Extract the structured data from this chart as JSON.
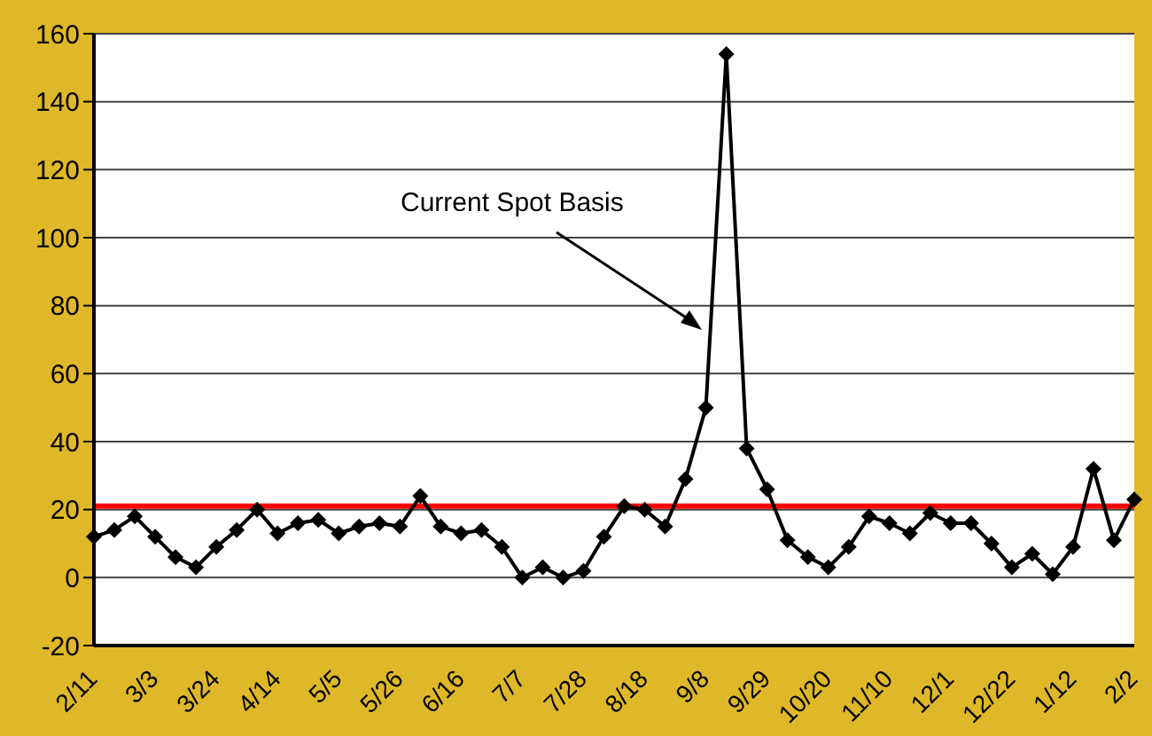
{
  "chart_data": {
    "type": "line",
    "categories": [
      "2/11",
      null,
      null,
      "3/3",
      null,
      null,
      "3/24",
      null,
      null,
      "4/14",
      null,
      null,
      "5/5",
      null,
      null,
      "5/26",
      null,
      null,
      "6/16",
      null,
      null,
      "7/7",
      null,
      null,
      "7/28",
      null,
      null,
      "8/18",
      null,
      null,
      "9/8",
      null,
      null,
      "9/29",
      null,
      null,
      "10/20",
      null,
      null,
      "11/10",
      null,
      null,
      "12/1",
      null,
      null,
      "12/22",
      null,
      null,
      "1/12",
      null,
      null,
      "2/2"
    ],
    "series": [
      {
        "color": "#000000",
        "values": [
          12,
          14,
          18,
          12,
          6,
          3,
          9,
          14,
          20,
          13,
          16,
          17,
          13,
          15,
          16,
          15,
          24,
          15,
          13,
          14,
          9,
          0,
          3,
          0,
          2,
          12,
          21,
          20,
          15,
          29,
          50,
          154,
          38,
          26,
          11,
          6,
          3,
          9,
          18,
          16,
          13,
          19,
          16,
          16,
          10,
          3,
          7,
          1,
          9,
          32,
          11,
          23
        ]
      }
    ],
    "ylim": [
      -20,
      160
    ],
    "yticks": [
      -20,
      0,
      20,
      40,
      60,
      80,
      100,
      120,
      140,
      160
    ],
    "grid": "y",
    "marker": "diamond",
    "line_style": "solid",
    "legend": false,
    "ref_lines": [
      {
        "axis": "y",
        "value": 21,
        "color": "#ff0000"
      }
    ],
    "annotations": [
      "Current Spot Basis"
    ]
  }
}
